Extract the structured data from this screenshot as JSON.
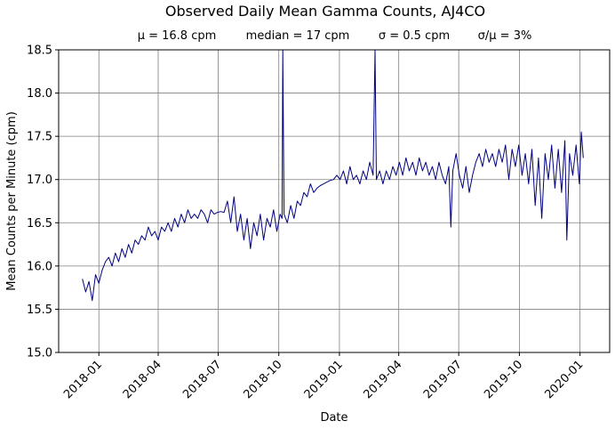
{
  "chart_data": {
    "type": "line",
    "title": "Observed Daily Mean Gamma Counts, AJ4CO",
    "subtitle_parts": [
      "μ = 16.8 cpm",
      "median = 17 cpm",
      "σ = 0.5 cpm",
      "σ/μ = 3%"
    ],
    "xlabel": "Date",
    "ylabel": "Mean Counts per Minute (cpm)",
    "ylim": [
      15.0,
      18.5
    ],
    "y_ticks": [
      "15.0",
      "15.5",
      "16.0",
      "16.5",
      "17.0",
      "17.5",
      "18.0",
      "18.5"
    ],
    "xlim": [
      "2017-11-01",
      "2020-02-15"
    ],
    "x_ticks": [
      "2018-01",
      "2018-04",
      "2018-07",
      "2018-10",
      "2019-01",
      "2019-04",
      "2019-07",
      "2019-10",
      "2020-01"
    ],
    "grid": true,
    "line_color": "#000080",
    "series": [
      {
        "points": [
          [
            "2017-12-07",
            15.85
          ],
          [
            "2017-12-12",
            15.7
          ],
          [
            "2017-12-17",
            15.82
          ],
          [
            "2017-12-22",
            15.6
          ],
          [
            "2017-12-27",
            15.9
          ],
          [
            "2018-01-01",
            15.8
          ],
          [
            "2018-01-06",
            15.95
          ],
          [
            "2018-01-11",
            16.05
          ],
          [
            "2018-01-16",
            16.1
          ],
          [
            "2018-01-21",
            16.0
          ],
          [
            "2018-01-26",
            16.15
          ],
          [
            "2018-01-31",
            16.05
          ],
          [
            "2018-02-05",
            16.2
          ],
          [
            "2018-02-10",
            16.1
          ],
          [
            "2018-02-15",
            16.25
          ],
          [
            "2018-02-20",
            16.15
          ],
          [
            "2018-02-25",
            16.3
          ],
          [
            "2018-03-02",
            16.25
          ],
          [
            "2018-03-07",
            16.35
          ],
          [
            "2018-03-12",
            16.3
          ],
          [
            "2018-03-17",
            16.45
          ],
          [
            "2018-03-22",
            16.35
          ],
          [
            "2018-03-27",
            16.4
          ],
          [
            "2018-04-01",
            16.3
          ],
          [
            "2018-04-06",
            16.45
          ],
          [
            "2018-04-11",
            16.4
          ],
          [
            "2018-04-16",
            16.5
          ],
          [
            "2018-04-21",
            16.4
          ],
          [
            "2018-04-26",
            16.55
          ],
          [
            "2018-05-01",
            16.45
          ],
          [
            "2018-05-06",
            16.6
          ],
          [
            "2018-05-11",
            16.5
          ],
          [
            "2018-05-16",
            16.65
          ],
          [
            "2018-05-21",
            16.55
          ],
          [
            "2018-05-26",
            16.6
          ],
          [
            "2018-05-31",
            16.55
          ],
          [
            "2018-06-05",
            16.65
          ],
          [
            "2018-06-10",
            16.6
          ],
          [
            "2018-06-15",
            16.5
          ],
          [
            "2018-06-20",
            16.65
          ],
          [
            "2018-06-25",
            16.6
          ],
          [
            "2018-06-30",
            16.62
          ],
          [
            "2018-07-05",
            16.63
          ],
          [
            "2018-07-10",
            16.62
          ],
          [
            "2018-07-15",
            16.75
          ],
          [
            "2018-07-20",
            16.5
          ],
          [
            "2018-07-25",
            16.8
          ],
          [
            "2018-07-30",
            16.4
          ],
          [
            "2018-08-04",
            16.6
          ],
          [
            "2018-08-09",
            16.3
          ],
          [
            "2018-08-14",
            16.55
          ],
          [
            "2018-08-19",
            16.2
          ],
          [
            "2018-08-24",
            16.5
          ],
          [
            "2018-08-29",
            16.35
          ],
          [
            "2018-09-03",
            16.6
          ],
          [
            "2018-09-08",
            16.3
          ],
          [
            "2018-09-13",
            16.55
          ],
          [
            "2018-09-18",
            16.45
          ],
          [
            "2018-09-23",
            16.65
          ],
          [
            "2018-09-28",
            16.4
          ],
          [
            "2018-10-03",
            16.6
          ],
          [
            "2018-10-06",
            16.55
          ],
          [
            "2018-10-07",
            18.5
          ],
          [
            "2018-10-09",
            16.6
          ],
          [
            "2018-10-14",
            16.5
          ],
          [
            "2018-10-19",
            16.7
          ],
          [
            "2018-10-24",
            16.55
          ],
          [
            "2018-10-29",
            16.75
          ],
          [
            "2018-11-03",
            16.7
          ],
          [
            "2018-11-08",
            16.85
          ],
          [
            "2018-11-13",
            16.8
          ],
          [
            "2018-11-18",
            16.95
          ],
          [
            "2018-11-23",
            16.85
          ],
          [
            "2018-11-28",
            16.9
          ],
          [
            "2018-12-03",
            16.93
          ],
          [
            "2018-12-08",
            16.95
          ],
          [
            "2018-12-13",
            16.97
          ],
          [
            "2018-12-18",
            16.99
          ],
          [
            "2018-12-23",
            17.0
          ],
          [
            "2018-12-28",
            17.05
          ],
          [
            "2019-01-02",
            17.0
          ],
          [
            "2019-01-07",
            17.1
          ],
          [
            "2019-01-12",
            16.95
          ],
          [
            "2019-01-17",
            17.15
          ],
          [
            "2019-01-22",
            17.0
          ],
          [
            "2019-01-27",
            17.05
          ],
          [
            "2019-02-01",
            16.95
          ],
          [
            "2019-02-06",
            17.1
          ],
          [
            "2019-02-11",
            17.0
          ],
          [
            "2019-02-16",
            17.2
          ],
          [
            "2019-02-21",
            17.05
          ],
          [
            "2019-02-24",
            18.5
          ],
          [
            "2019-02-26",
            17.0
          ],
          [
            "2019-03-03",
            17.1
          ],
          [
            "2019-03-08",
            16.95
          ],
          [
            "2019-03-13",
            17.1
          ],
          [
            "2019-03-18",
            17.0
          ],
          [
            "2019-03-23",
            17.15
          ],
          [
            "2019-03-28",
            17.05
          ],
          [
            "2019-04-02",
            17.2
          ],
          [
            "2019-04-07",
            17.05
          ],
          [
            "2019-04-12",
            17.25
          ],
          [
            "2019-04-17",
            17.1
          ],
          [
            "2019-04-22",
            17.2
          ],
          [
            "2019-04-27",
            17.05
          ],
          [
            "2019-05-02",
            17.25
          ],
          [
            "2019-05-07",
            17.1
          ],
          [
            "2019-05-12",
            17.2
          ],
          [
            "2019-05-17",
            17.05
          ],
          [
            "2019-05-22",
            17.15
          ],
          [
            "2019-05-27",
            17.0
          ],
          [
            "2019-06-01",
            17.2
          ],
          [
            "2019-06-06",
            17.05
          ],
          [
            "2019-06-11",
            16.95
          ],
          [
            "2019-06-16",
            17.15
          ],
          [
            "2019-06-19",
            16.45
          ],
          [
            "2019-06-22",
            17.1
          ],
          [
            "2019-06-27",
            17.3
          ],
          [
            "2019-07-02",
            17.05
          ],
          [
            "2019-07-07",
            16.9
          ],
          [
            "2019-07-12",
            17.15
          ],
          [
            "2019-07-17",
            16.85
          ],
          [
            "2019-07-22",
            17.05
          ],
          [
            "2019-07-27",
            17.2
          ],
          [
            "2019-08-01",
            17.3
          ],
          [
            "2019-08-06",
            17.15
          ],
          [
            "2019-08-11",
            17.35
          ],
          [
            "2019-08-16",
            17.2
          ],
          [
            "2019-08-21",
            17.3
          ],
          [
            "2019-08-26",
            17.15
          ],
          [
            "2019-08-31",
            17.35
          ],
          [
            "2019-09-05",
            17.2
          ],
          [
            "2019-09-10",
            17.4
          ],
          [
            "2019-09-15",
            17.0
          ],
          [
            "2019-09-20",
            17.35
          ],
          [
            "2019-09-25",
            17.15
          ],
          [
            "2019-09-30",
            17.4
          ],
          [
            "2019-10-05",
            17.05
          ],
          [
            "2019-10-10",
            17.3
          ],
          [
            "2019-10-15",
            16.95
          ],
          [
            "2019-10-20",
            17.35
          ],
          [
            "2019-10-25",
            16.7
          ],
          [
            "2019-10-30",
            17.25
          ],
          [
            "2019-11-04",
            16.55
          ],
          [
            "2019-11-09",
            17.3
          ],
          [
            "2019-11-14",
            17.0
          ],
          [
            "2019-11-19",
            17.4
          ],
          [
            "2019-11-24",
            16.9
          ],
          [
            "2019-11-29",
            17.35
          ],
          [
            "2019-12-04",
            16.85
          ],
          [
            "2019-12-09",
            17.45
          ],
          [
            "2019-12-12",
            16.3
          ],
          [
            "2019-12-16",
            17.3
          ],
          [
            "2019-12-21",
            17.05
          ],
          [
            "2019-12-26",
            17.4
          ],
          [
            "2019-12-31",
            16.95
          ],
          [
            "2020-01-03",
            17.55
          ],
          [
            "2020-01-06",
            17.25
          ]
        ]
      }
    ]
  }
}
